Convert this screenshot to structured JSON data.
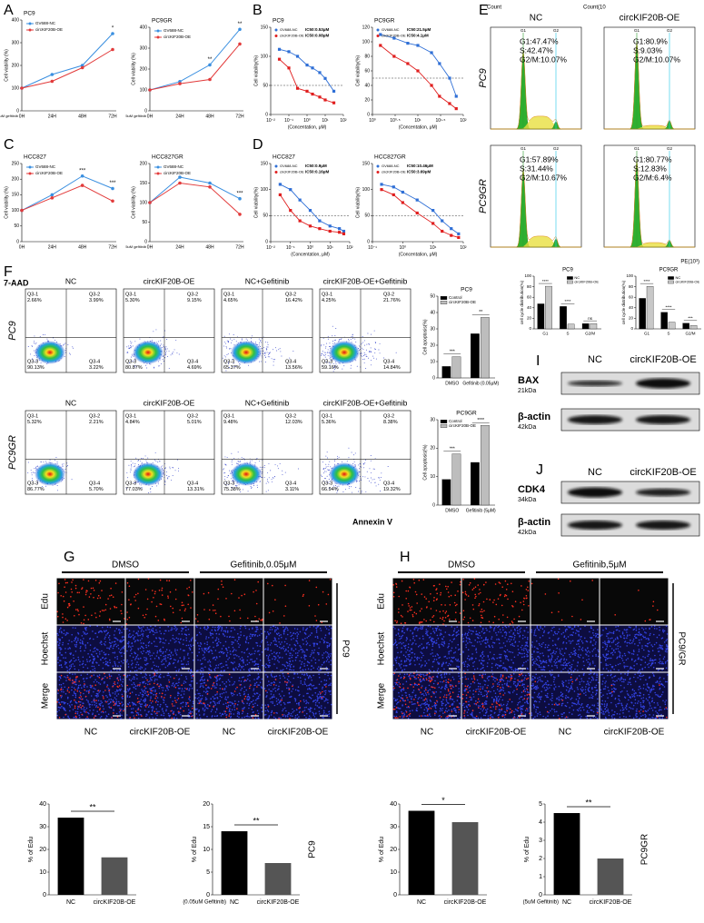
{
  "panel_labels": [
    "A",
    "B",
    "C",
    "D",
    "E",
    "F",
    "G",
    "H",
    "I",
    "J"
  ],
  "chart_data": [
    {
      "type": "line",
      "title": "PC9",
      "categories": [
        "0H",
        "24H",
        "48H",
        "72H"
      ],
      "series": [
        {
          "name": "GV688-NC",
          "color": "#3a8fe0",
          "values": [
            100,
            160,
            200,
            340
          ]
        },
        {
          "name": "circKIF20B-OE",
          "color": "#e23b3b",
          "values": [
            100,
            130,
            190,
            270
          ]
        }
      ],
      "ylim": [
        0,
        400
      ],
      "yticks": [
        0,
        100,
        200,
        300,
        400
      ],
      "ylabel": "Cell viability (%)",
      "sig": [
        null,
        null,
        null,
        "*"
      ],
      "note": "0.05uM gefitinib"
    },
    {
      "type": "line",
      "title": "PC9GR",
      "categories": [
        "0H",
        "24H",
        "48H",
        "72H"
      ],
      "series": [
        {
          "name": "GV688-NC",
          "color": "#3a8fe0",
          "values": [
            100,
            140,
            220,
            390
          ]
        },
        {
          "name": "circKIF20B-OE",
          "color": "#e23b3b",
          "values": [
            100,
            130,
            150,
            320
          ]
        }
      ],
      "ylim": [
        0,
        400
      ],
      "yticks": [
        0,
        100,
        200,
        300,
        400
      ],
      "ylabel": "Cell viability (%)",
      "sig": [
        null,
        null,
        "**",
        "**"
      ],
      "note": "5uM gefitinib"
    },
    {
      "type": "scatter",
      "title": "PC9",
      "x": [
        0.03,
        0.1,
        0.3,
        1,
        2,
        5,
        10,
        30
      ],
      "series": [
        {
          "name": "GV688-NC",
          "color": "#2f6fd6",
          "ic50": "IC50:0.53μM",
          "values": [
            112,
            108,
            100,
            85,
            80,
            72,
            62,
            40
          ]
        },
        {
          "name": "circKIF20B-OE",
          "color": "#e01e1e",
          "ic50": "IC50:0.08μM",
          "values": [
            95,
            80,
            45,
            40,
            35,
            30,
            25,
            20
          ]
        }
      ],
      "xlim": [
        0.01,
        100
      ],
      "xticks": [
        {
          "value": 0.01,
          "label": "10⁻²"
        },
        {
          "value": 0.1,
          "label": "10⁻¹"
        },
        {
          "value": 1,
          "label": "10⁰"
        },
        {
          "value": 10,
          "label": "10¹"
        },
        {
          "value": 100,
          "label": "10²"
        }
      ],
      "log_x": true,
      "ylim": [
        0,
        150
      ],
      "yticks": [
        0,
        50,
        100,
        150
      ],
      "reference_line": 50,
      "ylabel": "Cell viability(%)",
      "xlabel": "(Concentation, μM)"
    },
    {
      "type": "scatter",
      "title": "PC9GR",
      "x": [
        1.5,
        3,
        6,
        10,
        20,
        30,
        50,
        70
      ],
      "series": [
        {
          "name": "GV688-NC",
          "color": "#2f6fd6",
          "ic50": "IC50:21.5μM",
          "values": [
            110,
            105,
            98,
            95,
            85,
            70,
            50,
            25
          ]
        },
        {
          "name": "circKIF20B-OE",
          "color": "#e01e1e",
          "ic50": "IC50:4.1μM",
          "values": [
            95,
            80,
            70,
            60,
            40,
            25,
            15,
            8
          ]
        }
      ],
      "xlim": [
        1,
        100
      ],
      "xticks": [
        {
          "value": 1,
          "label": "10⁰"
        },
        {
          "value": 3.1623,
          "label": "10⁰·⁵"
        },
        {
          "value": 10,
          "label": "10¹"
        },
        {
          "value": 31.623,
          "label": "10¹·⁵"
        },
        {
          "value": 100,
          "label": "10²"
        }
      ],
      "log_x": true,
      "ylim": [
        0,
        120
      ],
      "yticks": [
        0,
        20,
        40,
        60,
        80,
        100,
        120
      ],
      "reference_line": 50,
      "ylabel": "Cell viability(%)",
      "xlabel": "(Concentation, μM)"
    },
    {
      "type": "line",
      "title": "HCC827",
      "categories": [
        "0H",
        "24H",
        "48H",
        "72H"
      ],
      "series": [
        {
          "name": "GV688-NC",
          "color": "#3a8fe0",
          "values": [
            100,
            150,
            210,
            170
          ]
        },
        {
          "name": "circKIF20B-OE",
          "color": "#e23b3b",
          "values": [
            100,
            140,
            180,
            130
          ]
        }
      ],
      "ylim": [
        0,
        250
      ],
      "yticks": [
        0,
        50,
        100,
        150,
        200,
        250
      ],
      "ylabel": "Cell viability (%)",
      "sig": [
        null,
        null,
        "***",
        "***"
      ]
    },
    {
      "type": "line",
      "title": "HCC827GR",
      "categories": [
        "0H",
        "24H",
        "48H",
        "72H"
      ],
      "series": [
        {
          "name": "GV688-NC",
          "color": "#3a8fe0",
          "values": [
            100,
            165,
            150,
            110
          ]
        },
        {
          "name": "circKIF20B-OE",
          "color": "#e23b3b",
          "values": [
            100,
            150,
            140,
            70
          ]
        }
      ],
      "ylim": [
        0,
        200
      ],
      "yticks": [
        0,
        50,
        100,
        150,
        200
      ],
      "ylabel": "Cell viability (%)",
      "sig": [
        null,
        null,
        null,
        "***"
      ],
      "note": "5uM gefitinib"
    },
    {
      "type": "scatter",
      "title": "HCC827",
      "x": [
        0.03,
        0.1,
        0.3,
        1,
        3,
        10,
        30,
        50
      ],
      "series": [
        {
          "name": "GV688-NC",
          "color": "#2f6fd6",
          "ic50": "IC50:0.9μM",
          "values": [
            110,
            100,
            80,
            60,
            40,
            30,
            25,
            20
          ]
        },
        {
          "name": "circKIF20B-OE",
          "color": "#e01e1e",
          "ic50": "IC50:0.16μM",
          "values": [
            90,
            60,
            40,
            30,
            25,
            20,
            18,
            15
          ]
        }
      ],
      "xlim": [
        0.01,
        100
      ],
      "xticks": [
        {
          "value": 0.01,
          "label": "10⁻²"
        },
        {
          "value": 0.1,
          "label": "10⁻¹"
        },
        {
          "value": 1,
          "label": "10⁰"
        },
        {
          "value": 10,
          "label": "10¹"
        },
        {
          "value": 100,
          "label": "10²"
        }
      ],
      "log_x": true,
      "ylim": [
        0,
        150
      ],
      "yticks": [
        0,
        50,
        100,
        150
      ],
      "reference_line": 50,
      "ylabel": "Cell viability(%)",
      "xlabel": "(Concentation, μM)"
    },
    {
      "type": "scatter",
      "title": "HCC827GR",
      "x": [
        0.2,
        0.5,
        1,
        3,
        10,
        20,
        40,
        70
      ],
      "series": [
        {
          "name": "GV688-NC",
          "color": "#2f6fd6",
          "ic50": "IC50:10.46μM",
          "values": [
            110,
            105,
            95,
            80,
            60,
            40,
            25,
            15
          ]
        },
        {
          "name": "circKIF20B-OE",
          "color": "#e01e1e",
          "ic50": "IC50:3.69μM",
          "values": [
            100,
            90,
            75,
            55,
            35,
            20,
            12,
            8
          ]
        }
      ],
      "xlim": [
        0.1,
        100
      ],
      "xticks": [
        {
          "value": 0.1,
          "label": "10⁻¹"
        },
        {
          "value": 1,
          "label": "10⁰"
        },
        {
          "value": 10,
          "label": "10¹"
        },
        {
          "value": 100,
          "label": "10²"
        }
      ],
      "log_x": true,
      "ylim": [
        0,
        150
      ],
      "yticks": [
        0,
        50,
        100,
        150
      ],
      "reference_line": 50,
      "ylabel": "Cell viability(%)",
      "xlabel": "(Concentation, μM)"
    },
    {
      "type": "bar",
      "title": "PC9",
      "categories": [
        "G1",
        "S",
        "G2/M"
      ],
      "series": [
        {
          "name": "NC",
          "color": "#000000",
          "values": [
            47.47,
            42.47,
            10.07
          ]
        },
        {
          "name": "circKIF20B-OE",
          "color": "#c8c8c8",
          "values": [
            80.9,
            9.03,
            10.07
          ]
        }
      ],
      "ylim": [
        0,
        100
      ],
      "yticks": [
        0,
        20,
        40,
        60,
        80,
        100
      ],
      "ylabel": "cell cycle distribution(%)",
      "sig": [
        "****",
        "****",
        "ns"
      ]
    },
    {
      "type": "bar",
      "title": "PC9GR",
      "categories": [
        "G1",
        "S",
        "G2/M"
      ],
      "series": [
        {
          "name": "NC",
          "color": "#000000",
          "values": [
            57.89,
            31.44,
            10.67
          ]
        },
        {
          "name": "circKIF20B-OE",
          "color": "#c8c8c8",
          "values": [
            80.77,
            12.83,
            6.4
          ]
        }
      ],
      "ylim": [
        0,
        100
      ],
      "yticks": [
        0,
        20,
        40,
        60,
        80,
        100
      ],
      "ylabel": "cell cycle distribution(%)",
      "sig": [
        "****",
        "****",
        "***"
      ]
    },
    {
      "type": "bar",
      "title": "PC9",
      "categories": [
        "DMSO",
        "Gefitinib (0.05μM)"
      ],
      "series": [
        {
          "name": "Control",
          "color": "#000000",
          "values": [
            7,
            27
          ]
        },
        {
          "name": "circKIF20B-OE",
          "color": "#bdbdbd",
          "values": [
            13,
            37
          ]
        }
      ],
      "ylim": [
        0,
        50
      ],
      "yticks": [
        0,
        10,
        20,
        30,
        40,
        50
      ],
      "ylabel": "Cell apoptosis(%)",
      "sig": [
        "***",
        "**"
      ]
    },
    {
      "type": "bar",
      "title": "PC9GR",
      "categories": [
        "DMSO",
        "Gefitinib (5μM)"
      ],
      "series": [
        {
          "name": "Control",
          "color": "#000000",
          "values": [
            9,
            15
          ]
        },
        {
          "name": "circKIF20B-OE",
          "color": "#bdbdbd",
          "values": [
            18,
            28
          ]
        }
      ],
      "ylim": [
        0,
        30
      ],
      "yticks": [
        0,
        10,
        20,
        30
      ],
      "ylabel": "Cell apoptosis(%)",
      "sig": [
        "***",
        "****"
      ]
    },
    {
      "type": "bar",
      "categories": [
        "NC",
        "circKIF20B-OE"
      ],
      "values": [
        34,
        16.5
      ],
      "colors": [
        "#000000",
        "#555555"
      ],
      "ylim": [
        0,
        40
      ],
      "yticks": [
        0,
        10,
        20,
        30,
        40
      ],
      "ylabel": "% of Edu",
      "sig": "**"
    },
    {
      "type": "bar",
      "categories": [
        "NC",
        "circKIF20B-OE"
      ],
      "values": [
        14,
        7
      ],
      "colors": [
        "#000000",
        "#555555"
      ],
      "ylim": [
        0,
        20
      ],
      "yticks": [
        0,
        5,
        10,
        15,
        20
      ],
      "ylabel": "% of Edu",
      "sig": "**",
      "note": "(0.05uM Gefitinib)",
      "side_label": "PC9"
    },
    {
      "type": "bar",
      "categories": [
        "NC",
        "circKIF20B-OE"
      ],
      "values": [
        37,
        32
      ],
      "colors": [
        "#000000",
        "#555555"
      ],
      "ylim": [
        0,
        40
      ],
      "yticks": [
        0,
        10,
        20,
        30,
        40
      ],
      "ylabel": "% of Edu",
      "sig": "*"
    },
    {
      "type": "bar",
      "categories": [
        "NC",
        "circKIF20B-OE"
      ],
      "values": [
        4.5,
        2
      ],
      "colors": [
        "#000000",
        "#555555"
      ],
      "ylim": [
        0,
        5
      ],
      "yticks": [
        0,
        1,
        2,
        3,
        4,
        5
      ],
      "ylabel": "% of Edu",
      "sig": "**",
      "note": "(5uM Gefitinib)",
      "side_label": "PC9GR"
    }
  ],
  "flow_cycle": {
    "columns": [
      "NC",
      "circKIF20B-OE"
    ],
    "rows": [
      "PC9",
      "PC9GR"
    ],
    "count_label": "Count",
    "count_label_2": "Count(10",
    "x_label": "PE(10³)",
    "gate_labels": [
      "G1",
      "G2"
    ],
    "stats": [
      [
        [
          "G1:47.47%",
          "S:42.47%",
          "G2/M:10.07%"
        ],
        [
          "G1:80.9%",
          "S:9.03%",
          "G2/M:10.07%"
        ]
      ],
      [
        [
          "G1:57.89%",
          "S:31.44%",
          "G2/M:10.67%"
        ],
        [
          "G1:80.77%",
          "S:12.83%",
          "G2/M:6.4%"
        ]
      ]
    ]
  },
  "flow_apoptosis": {
    "y_label": "7-AAD",
    "x_label": "Annexin V",
    "rows": [
      "PC9",
      "PC9GR"
    ],
    "columns": [
      "NC",
      "circKIF20B-OE",
      "NC+Gefitinib",
      "circKIF20B-OE+Gefitinib"
    ],
    "quadrant_names": [
      "Q3-1",
      "Q3-2",
      "Q3-3",
      "Q3-4"
    ],
    "quadrants": [
      [
        [
          "2.66%",
          "3.99%",
          "90.13%",
          "3.22%"
        ],
        [
          "5.30%",
          "9.15%",
          "80.87%",
          "4.69%"
        ],
        [
          "4.65%",
          "16.42%",
          "65.37%",
          "13.56%"
        ],
        [
          "4.25%",
          "21.76%",
          "59.16%",
          "14.84%"
        ]
      ],
      [
        [
          "5.32%",
          "2.21%",
          "86.77%",
          "5.70%"
        ],
        [
          "4.84%",
          "5.01%",
          "77.03%",
          "13.31%"
        ],
        [
          "9.48%",
          "12.03%",
          "75.38%",
          "3.11%"
        ],
        [
          "5.36%",
          "8.38%",
          "66.94%",
          "19.32%"
        ]
      ]
    ]
  },
  "blots": [
    {
      "columns": [
        "NC",
        "circKIF20B-OE"
      ],
      "rows": [
        {
          "name": "BAX",
          "size": "21kDa"
        },
        {
          "name": "β-actin",
          "size": "42kDa"
        }
      ]
    },
    {
      "columns": [
        "NC",
        "circKIF20B-OE"
      ],
      "rows": [
        {
          "name": "CDK4",
          "size": "34kDa"
        },
        {
          "name": "β-actin",
          "size": "42kDa"
        }
      ]
    }
  ],
  "edu": [
    {
      "treatments": [
        "DMSO",
        "Gefitinib,0.05μM"
      ],
      "stains": [
        "Edu",
        "Hoechst",
        "Merge"
      ],
      "side": "PC9",
      "columns": [
        "NC",
        "circKIF20B-OE",
        "NC",
        "circKIF20B-OE"
      ]
    },
    {
      "treatments": [
        "DMSO",
        "Gefitinib,5μM"
      ],
      "stains": [
        "Edu",
        "Hoechst",
        "Merge"
      ],
      "side": "PC9/GR",
      "columns": [
        "NC",
        "circKIF20B-OE",
        "NC",
        "circKIF20B-OE"
      ]
    }
  ]
}
